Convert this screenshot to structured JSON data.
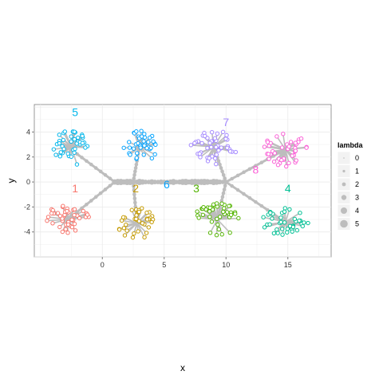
{
  "chart_data": {
    "type": "scatter",
    "xlabel": "x",
    "ylabel": "y",
    "xlim": [
      -5.5,
      18.5
    ],
    "ylim": [
      -6.0,
      6.2
    ],
    "x_ticks": [
      0,
      5,
      10,
      15
    ],
    "y_ticks": [
      -4,
      -2,
      0,
      2,
      4
    ],
    "grid": true,
    "background": "#ffffff",
    "grid_color": "#ebebeb",
    "edge_color": "#bdbdbd",
    "legend": {
      "title": "lambda",
      "placement": "right",
      "entries": [
        "0",
        "1",
        "2",
        "3",
        "4",
        "5"
      ]
    },
    "clusters": [
      {
        "label": "1",
        "color": "#F8766D",
        "label_pos": [
          -2.2,
          -0.5
        ],
        "center": [
          -2.8,
          -3.0
        ],
        "spread": [
          2.1,
          1.1
        ],
        "points": 42,
        "seed": 11
      },
      {
        "label": "2",
        "color": "#C49A00",
        "label_pos": [
          2.7,
          -0.5
        ],
        "center": [
          2.8,
          -3.3
        ],
        "spread": [
          1.6,
          1.3
        ],
        "points": 38,
        "seed": 23
      },
      {
        "label": "3",
        "color": "#53B400",
        "label_pos": [
          7.6,
          -0.5
        ],
        "center": [
          9.3,
          -3.0
        ],
        "spread": [
          1.9,
          1.3
        ],
        "points": 42,
        "seed": 37
      },
      {
        "label": "4",
        "color": "#00C094",
        "label_pos": [
          15.0,
          -0.5
        ],
        "center": [
          14.8,
          -3.2
        ],
        "spread": [
          1.9,
          1.1
        ],
        "points": 40,
        "seed": 41
      },
      {
        "label": "5",
        "color": "#00B6EB",
        "label_pos": [
          -2.2,
          5.6
        ],
        "center": [
          -2.5,
          2.8
        ],
        "spread": [
          1.5,
          1.5
        ],
        "points": 40,
        "seed": 53
      },
      {
        "label": "6",
        "color": "#06A4FF",
        "label_pos": [
          5.2,
          -0.2
        ],
        "center": [
          3.0,
          2.8
        ],
        "spread": [
          1.5,
          1.4
        ],
        "points": 40,
        "seed": 67
      },
      {
        "label": "7",
        "color": "#A58AFF",
        "label_pos": [
          10.0,
          4.8
        ],
        "center": [
          9.0,
          2.8
        ],
        "spread": [
          1.9,
          1.4
        ],
        "points": 44,
        "seed": 71
      },
      {
        "label": "8",
        "color": "#FB61D7",
        "label_pos": [
          12.4,
          1.0
        ],
        "center": [
          14.8,
          2.6
        ],
        "spread": [
          1.8,
          1.4
        ],
        "points": 42,
        "seed": 83
      }
    ],
    "backbone": {
      "points": [
        [
          1.0,
          0.0
        ],
        [
          2.0,
          0.0
        ],
        [
          3.0,
          0.0
        ],
        [
          4.0,
          0.0
        ],
        [
          5.0,
          0.0
        ],
        [
          6.0,
          0.0
        ],
        [
          7.0,
          0.0
        ],
        [
          8.0,
          0.0
        ],
        [
          9.0,
          0.0
        ],
        [
          10.0,
          0.0
        ]
      ],
      "lambda": 5
    },
    "connectors": [
      {
        "from": [
          -2.8,
          2.8
        ],
        "to": [
          1.0,
          0.0
        ]
      },
      {
        "from": [
          -2.8,
          -3.0
        ],
        "to": [
          1.0,
          0.0
        ]
      },
      {
        "from": [
          3.0,
          2.8
        ],
        "to": [
          2.5,
          0.0
        ]
      },
      {
        "from": [
          2.8,
          -3.3
        ],
        "to": [
          2.5,
          0.0
        ]
      },
      {
        "from": [
          9.0,
          2.8
        ],
        "to": [
          10.0,
          0.0
        ]
      },
      {
        "from": [
          9.3,
          -3.0
        ],
        "to": [
          10.0,
          0.0
        ]
      },
      {
        "from": [
          14.8,
          2.6
        ],
        "to": [
          10.0,
          0.0
        ]
      },
      {
        "from": [
          14.8,
          -3.2
        ],
        "to": [
          10.0,
          0.0
        ]
      }
    ]
  }
}
